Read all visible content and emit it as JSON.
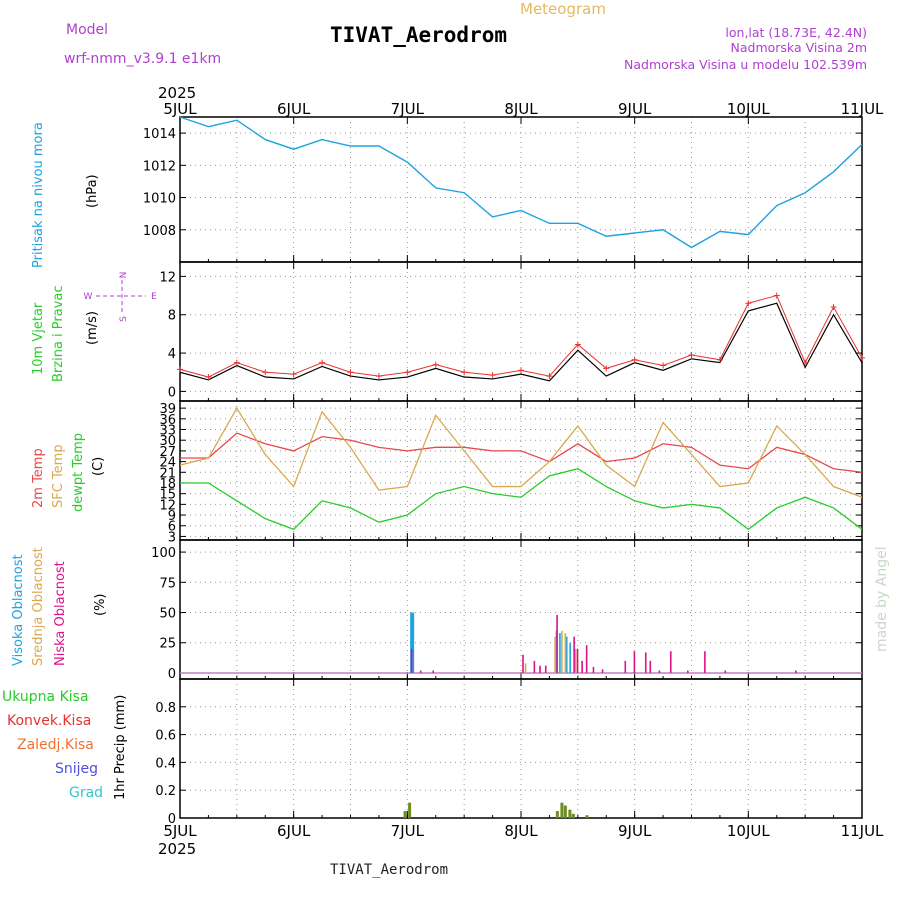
{
  "header": {
    "model_label": "Model",
    "model_name": "wrf-nmm_v3.9.1 e1km",
    "meteogram_label": "Meteogram",
    "station": "TIVAT_Aerodrom",
    "lonlat": "lon,lat (18.73E, 42.4N)",
    "elevation": "Nadmorska Visina 2m",
    "model_elevation": "Nadmorska Visina u modelu 102.539m",
    "footer_station": "TIVAT_Aerodrom",
    "credit": "made by Angel"
  },
  "time_axis": {
    "year": "2025",
    "ticks": [
      "5JUL",
      "6JUL",
      "7JUL",
      "8JUL",
      "9JUL",
      "10JUL",
      "11JUL"
    ]
  },
  "colors": {
    "pressure": "#1ea3e0",
    "temp2m": "#e8474c",
    "sfc": "#daa850",
    "dewpt": "#29cc29",
    "visoka": "#1ea3e0",
    "srednja": "#daa850",
    "niska": "#dd1188",
    "ukupna": "#29cc29",
    "konvek": "#e83030",
    "zaledj": "#f07030",
    "snijeg": "#5050e0",
    "grad": "#30c8c8",
    "precip_bar": "#6b8e23",
    "wind_lbl": "#b040d0"
  },
  "chart_data": [
    {
      "type": "line",
      "name": "pressure",
      "ylabel": "Pritisak na nivou mora",
      "unit": "(hPa)",
      "ylim": [
        1006,
        1015
      ],
      "yticks": [
        1008,
        1010,
        1012,
        1014
      ],
      "grid": true,
      "x": [
        0,
        0.25,
        0.5,
        0.75,
        1.0,
        1.25,
        1.5,
        1.75,
        2.0,
        2.25,
        2.5,
        2.75,
        3.0,
        3.25,
        3.5,
        3.75,
        4.0,
        4.25,
        4.5,
        4.75,
        5.0,
        5.25,
        5.5,
        5.75,
        6.0
      ],
      "y": [
        1015.0,
        1014.4,
        1014.8,
        1013.6,
        1013.0,
        1013.6,
        1013.2,
        1013.2,
        1012.2,
        1010.6,
        1010.3,
        1008.8,
        1009.2,
        1008.4,
        1008.4,
        1007.6,
        1007.8,
        1008.0,
        1006.9,
        1007.9,
        1007.7,
        1009.5,
        1010.3,
        1011.6,
        1013.3
      ]
    },
    {
      "type": "line",
      "name": "wind",
      "ylabel_lines": [
        "10m Vjetar",
        "Brzina i Pravac"
      ],
      "unit": "(m/s)",
      "compass": {
        "n": "N",
        "s": "S",
        "w": "W",
        "e": "E"
      },
      "ylim": [
        -1,
        13.5
      ],
      "yticks": [
        0,
        4,
        8,
        12
      ],
      "grid": true,
      "x": [
        0,
        0.25,
        0.5,
        0.75,
        1.0,
        1.25,
        1.5,
        1.75,
        2.0,
        2.25,
        2.5,
        2.75,
        3.0,
        3.25,
        3.5,
        3.75,
        4.0,
        4.25,
        4.5,
        4.75,
        5.0,
        5.25,
        5.5,
        5.75,
        6.0
      ],
      "speed": [
        2.0,
        1.2,
        2.7,
        1.5,
        1.3,
        2.6,
        1.6,
        1.2,
        1.5,
        2.4,
        1.5,
        1.3,
        1.8,
        1.1,
        4.3,
        1.6,
        3.0,
        2.2,
        3.4,
        3.0,
        8.4,
        9.2,
        2.5,
        8.0,
        3.0
      ],
      "gust": [
        2.3,
        1.5,
        3.0,
        2.0,
        1.8,
        3.0,
        2.0,
        1.6,
        2.0,
        2.8,
        2.0,
        1.7,
        2.2,
        1.6,
        4.9,
        2.4,
        3.3,
        2.7,
        3.8,
        3.3,
        9.2,
        10.0,
        3.0,
        8.8,
        3.5
      ]
    },
    {
      "type": "line",
      "name": "temperature",
      "ylabel_lines": [
        "2m Temp",
        "SFC Temp",
        "dewpt Temp"
      ],
      "unit": "(C)",
      "ylim": [
        2,
        41
      ],
      "yticks": [
        3,
        6,
        9,
        12,
        15,
        18,
        21,
        24,
        27,
        30,
        33,
        36,
        39
      ],
      "grid": true,
      "x": [
        0,
        0.25,
        0.5,
        0.75,
        1.0,
        1.25,
        1.5,
        1.75,
        2.0,
        2.25,
        2.5,
        2.75,
        3.0,
        3.25,
        3.5,
        3.75,
        4.0,
        4.25,
        4.5,
        4.75,
        5.0,
        5.25,
        5.5,
        5.75,
        6.0
      ],
      "series": [
        {
          "name": "2m Temp",
          "color_key": "temp2m",
          "values": [
            25,
            25,
            32,
            29,
            27,
            31,
            30,
            28,
            27,
            28,
            28,
            27,
            27,
            24,
            29,
            24,
            25,
            29,
            28,
            23,
            22,
            28,
            26,
            22,
            21
          ]
        },
        {
          "name": "SFC Temp",
          "color_key": "sfc",
          "values": [
            23,
            25,
            39,
            26,
            17,
            38,
            28,
            16,
            17,
            37,
            27,
            17,
            17,
            24,
            34,
            23,
            17,
            35,
            26,
            17,
            18,
            34,
            26,
            17,
            14
          ]
        },
        {
          "name": "dewpt Temp",
          "color_key": "dewpt",
          "values": [
            18,
            18,
            13,
            8,
            5,
            13,
            11,
            7,
            9,
            15,
            17,
            15,
            14,
            20,
            22,
            17,
            13,
            11,
            12,
            11,
            5,
            11,
            14,
            11,
            5
          ]
        }
      ]
    },
    {
      "type": "bar",
      "name": "cloud",
      "ylabel_lines": [
        "Visoka Oblacnost",
        "Srednja Oblacnost",
        "Niska Oblacnost"
      ],
      "unit": "(%)",
      "ylim": [
        -5,
        110
      ],
      "yticks": [
        0,
        25,
        50,
        75,
        100
      ],
      "grid": true,
      "x": [
        2.02,
        2.06,
        2.1,
        2.21,
        3.0,
        3.04,
        3.1,
        3.15,
        3.2,
        3.3,
        3.33,
        3.36,
        3.39,
        3.42,
        3.45,
        3.48,
        3.52,
        3.56,
        3.62,
        3.7,
        3.9,
        3.98,
        4.08,
        4.12,
        4.2,
        4.3,
        4.45,
        4.6,
        4.78,
        5.4
      ],
      "series": [
        {
          "name": "Visoka Oblacnost",
          "color_key": "visoka",
          "values": [
            0,
            50,
            0,
            0,
            0,
            0,
            0,
            0,
            0,
            0,
            35,
            33,
            0,
            30,
            25,
            0,
            0,
            0,
            0,
            0,
            0,
            0,
            0,
            0,
            0,
            0,
            0,
            0,
            0,
            0
          ]
        },
        {
          "name": "Srednja Oblacnost",
          "color_key": "srednja",
          "values": [
            0,
            0,
            0,
            0,
            0,
            8,
            0,
            0,
            0,
            30,
            0,
            35,
            33,
            0,
            0,
            20,
            0,
            0,
            0,
            0,
            0,
            0,
            0,
            0,
            0,
            0,
            0,
            0,
            0,
            0
          ]
        },
        {
          "name": "Niska Oblacnost",
          "color_key": "niska",
          "values": [
            20,
            0,
            2,
            2,
            15,
            0,
            10,
            6,
            6,
            48,
            0,
            0,
            0,
            0,
            30,
            20,
            10,
            23,
            5,
            3,
            10,
            18,
            17,
            10,
            2,
            18,
            2,
            18,
            2,
            2
          ]
        }
      ]
    },
    {
      "type": "bar",
      "name": "precip",
      "legend": [
        "Ukupna Kisa",
        "Konvek.Kisa",
        "Zaledj.Kisa",
        "Snijeg",
        "Grad"
      ],
      "ylabel": "1hr Precip (mm)",
      "ylim": [
        0,
        1.0
      ],
      "yticks": [
        0,
        0.2,
        0.4,
        0.6,
        0.8
      ],
      "grid": true,
      "x": [
        1.98,
        2.02,
        3.32,
        3.36,
        3.39,
        3.43,
        3.46,
        3.58
      ],
      "values": [
        0.05,
        0.11,
        0.05,
        0.11,
        0.09,
        0.06,
        0.03,
        0.02
      ]
    }
  ]
}
